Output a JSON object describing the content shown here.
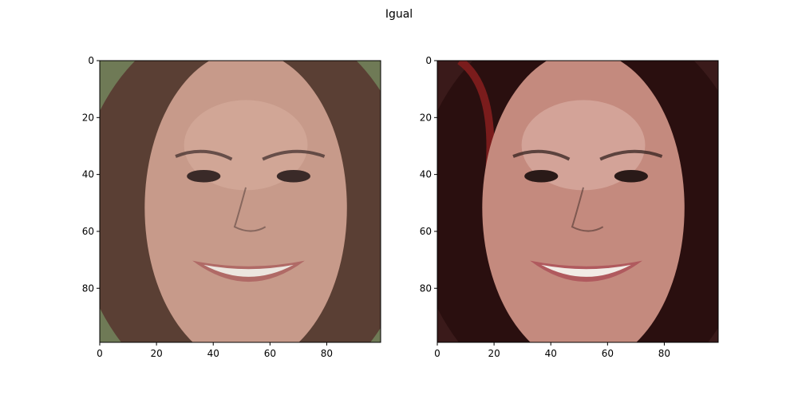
{
  "figure": {
    "suptitle": "Igual"
  },
  "chart_data": [
    {
      "type": "image",
      "title": "",
      "image_description": "face photo, smiling woman with long brown hair",
      "xlim": [
        0,
        99
      ],
      "ylim": [
        99,
        0
      ],
      "xticks": [
        0,
        20,
        40,
        60,
        80
      ],
      "yticks": [
        0,
        20,
        40,
        60,
        80
      ],
      "xtick_labels": [
        "0",
        "20",
        "40",
        "60",
        "80"
      ],
      "ytick_labels": [
        "0",
        "20",
        "40",
        "60",
        "80"
      ],
      "palette": {
        "background": "#6f7a56",
        "hair": "#5a3f34",
        "skin": "#c79a8a",
        "skin_highlight": "#d8b0a0",
        "lips": "#b06a66",
        "teeth": "#ece6df",
        "eyes": "#3a2a28"
      }
    },
    {
      "type": "image",
      "title": "",
      "image_description": "face photo, smiling woman with dark hair",
      "xlim": [
        0,
        99
      ],
      "ylim": [
        99,
        0
      ],
      "xticks": [
        0,
        20,
        40,
        60,
        80
      ],
      "yticks": [
        0,
        20,
        40,
        60,
        80
      ],
      "xtick_labels": [
        "0",
        "20",
        "40",
        "60",
        "80"
      ],
      "ytick_labels": [
        "0",
        "20",
        "40",
        "60",
        "80"
      ],
      "palette": {
        "background": "#3a1a1a",
        "hair": "#2a0f0f",
        "hair_red": "#7a1c1c",
        "skin": "#c48a7e",
        "skin_highlight": "#e0b8ad",
        "lips": "#b05a5e",
        "teeth": "#f2ece6",
        "eyes": "#2a1a18"
      }
    }
  ]
}
